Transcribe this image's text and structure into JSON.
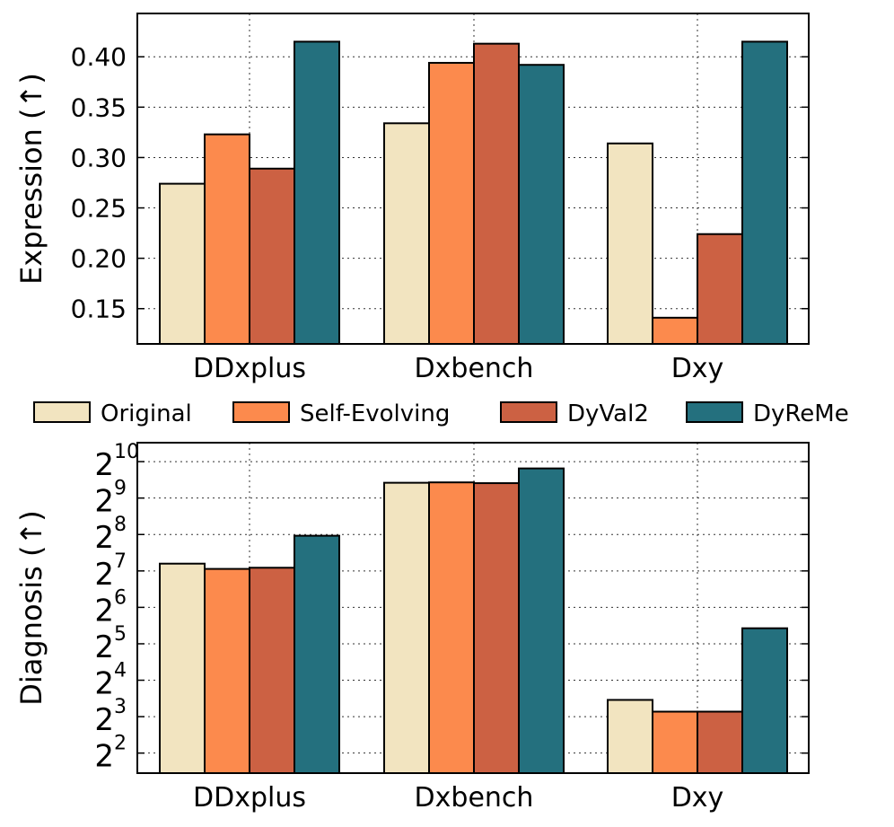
{
  "legend": {
    "entries": [
      {
        "name": "Original",
        "color": "#F2E4C0"
      },
      {
        "name": "Self-Evolving",
        "color": "#FC8A4D"
      },
      {
        "name": "DyVal2",
        "color": "#CC6143"
      },
      {
        "name": "DyReMe",
        "color": "#24707E"
      }
    ]
  },
  "chart_data": [
    {
      "type": "bar",
      "title": "",
      "ylabel": "Expression (↑)",
      "xlabel": "",
      "categories": [
        "DDxplus",
        "Dxbench",
        "Dxy"
      ],
      "ylim": [
        0.115,
        0.443
      ],
      "yticks": [
        0.15,
        0.2,
        0.25,
        0.3,
        0.35,
        0.4
      ],
      "ytick_labels": [
        "0.15",
        "0.20",
        "0.25",
        "0.30",
        "0.35",
        "0.40"
      ],
      "grid": true,
      "series": [
        {
          "name": "Original",
          "color": "#F2E4C0",
          "values": [
            0.274,
            0.334,
            0.314
          ]
        },
        {
          "name": "Self-Evolving",
          "color": "#FC8A4D",
          "values": [
            0.323,
            0.394,
            0.141
          ]
        },
        {
          "name": "DyVal2",
          "color": "#CC6143",
          "values": [
            0.289,
            0.413,
            0.224
          ]
        },
        {
          "name": "DyReMe",
          "color": "#24707E",
          "values": [
            0.415,
            0.392,
            0.415
          ]
        }
      ]
    },
    {
      "type": "bar",
      "title": "",
      "ylabel": "Diagnosis (↑)",
      "xlabel": "",
      "yscale": "log2",
      "categories": [
        "DDxplus",
        "Dxbench",
        "Dxy"
      ],
      "ylim_exp": [
        1.45,
        10.52
      ],
      "yticks_exp": [
        2,
        3,
        4,
        5,
        6,
        7,
        8,
        9,
        10
      ],
      "ytick_base": "2",
      "ytick_exps": [
        "2",
        "3",
        "4",
        "5",
        "6",
        "7",
        "8",
        "9",
        "10"
      ],
      "grid": true,
      "series": [
        {
          "name": "Original",
          "color": "#F2E4C0",
          "values": [
            147,
            685,
            11
          ]
        },
        {
          "name": "Self-Evolving",
          "color": "#FC8A4D",
          "values": [
            133,
            690,
            8.8
          ]
        },
        {
          "name": "DyVal2",
          "color": "#CC6143",
          "values": [
            136,
            680,
            8.8
          ]
        },
        {
          "name": "DyReMe",
          "color": "#24707E",
          "values": [
            250,
            900,
            43
          ]
        }
      ]
    }
  ]
}
